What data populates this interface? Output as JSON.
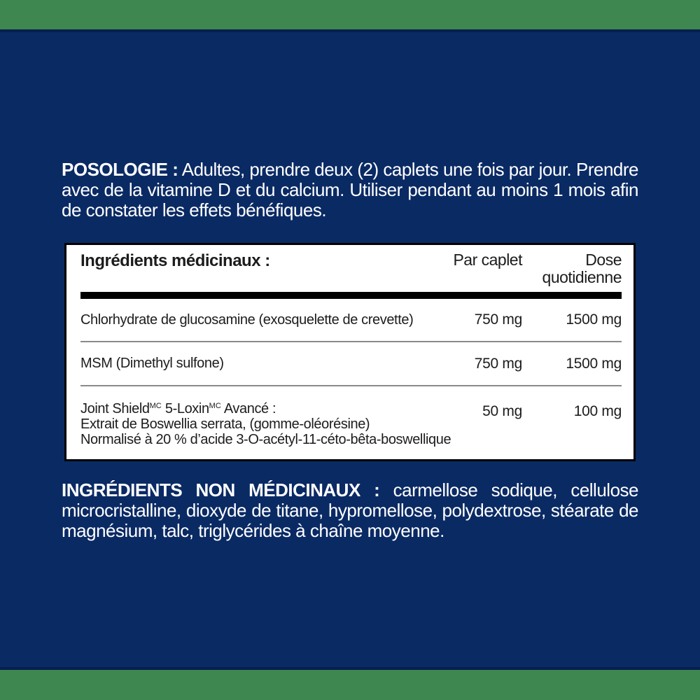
{
  "colors": {
    "band_green": "#3F8750",
    "background_navy": "#0A2A64",
    "band_edge_dark_navy": "#061F4F",
    "panel_background": "#FFFFFF",
    "panel_border": "#000000",
    "panel_text": "#1C1C1C",
    "row_separator_gray": "#8A8A8A",
    "paragraph_text": "#FFFFFF"
  },
  "posologie": {
    "label": "POSOLOGIE :",
    "text": "Adultes, prendre deux (2) caplets une fois par jour. Prendre avec de la vitamine D et du calcium. Utiliser pendant au moins 1 mois afin de constater les effets bénéfiques."
  },
  "table": {
    "title": "Ingrédients médicinaux :",
    "col_per_caplet": "Par caplet",
    "col_daily_dose": "Dose quotidienne",
    "rows": [
      {
        "name": "Chlorhydrate de glucosamine (exosquelette de crevette)",
        "per_caplet": "750 mg",
        "daily": "1500 mg"
      },
      {
        "name": "MSM (Dimethyl sulfone)",
        "per_caplet": "750 mg",
        "daily": "1500 mg"
      },
      {
        "line1_pre": "Joint Shield",
        "line1_sup1": "MC",
        "line1_mid": " 5-Loxin",
        "line1_sup2": "MC",
        "line1_post": " Avancé :",
        "line2": "Extrait de Boswellia serrata, (gomme-oléorésine)",
        "line3": "Normalisé à 20 % d’acide 3-O-acétyl-11-céto-bêta-boswellique",
        "per_caplet": "50 mg",
        "daily": "100 mg"
      }
    ]
  },
  "non_medicinal": {
    "label": "INGRÉDIENTS NON MÉDICINAUX :",
    "text": "carmellose sodique, cellulose microcristalline, dioxyde de titane, hypromellose, polydextrose, stéarate de magnésium, talc, triglycérides à chaîne moyenne."
  }
}
